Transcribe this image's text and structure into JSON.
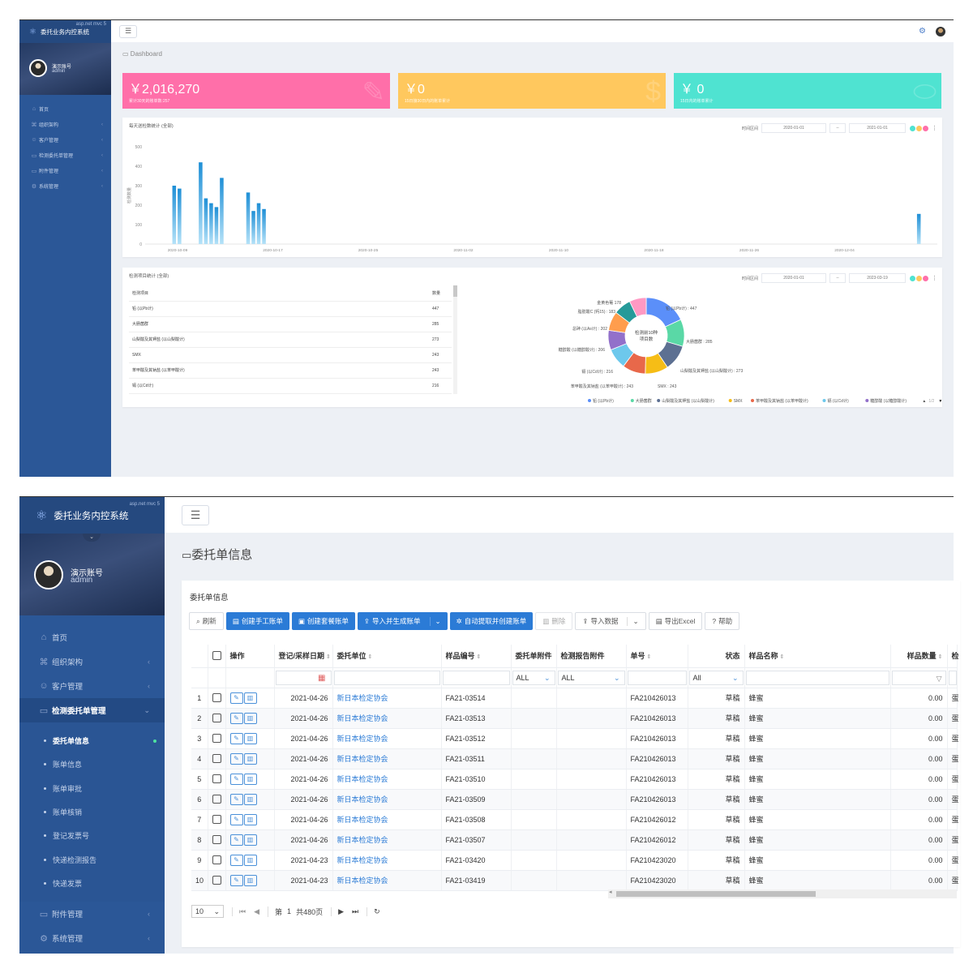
{
  "app": {
    "title": "委托业务内控系统",
    "badge": "asp.net mvc 5",
    "user_name": "演示账号",
    "user_role": "admin"
  },
  "nav1": [
    {
      "label": "首页",
      "icon": "home-icon"
    },
    {
      "label": "组织架构",
      "icon": "org-icon"
    },
    {
      "label": "客户管理",
      "icon": "users-icon"
    },
    {
      "label": "检测委托单管理",
      "icon": "doc-icon"
    },
    {
      "label": "附件管理",
      "icon": "attach-icon"
    },
    {
      "label": "系统管理",
      "icon": "gear-icon"
    }
  ],
  "dashboard": {
    "breadcrumb": "Dashboard",
    "stats": [
      {
        "value": "￥2,016,270",
        "label": "累计30天的账单数:257",
        "color": "#ff6fa9"
      },
      {
        "value": "￥0",
        "label": "15日接30日内的账单累计",
        "color": "#ffc85e"
      },
      {
        "value": "￥ 0",
        "label": "15日内的账单累计",
        "color": "#4fe3d1"
      }
    ],
    "chart1": {
      "title": "每天送检数统计 (全部)",
      "date_label": "时间区间",
      "date_from": "2020-01-01",
      "date_sep": "--",
      "date_to": "2021-01-01",
      "chart_data": {
        "type": "bar",
        "ylabel": "检测数量",
        "yticks": [
          0,
          100,
          200,
          300,
          400,
          500
        ],
        "ylim": [
          0,
          500
        ],
        "xticks": [
          "2020-10-09",
          "2020-10-17",
          "2020-10-25",
          "2020-11-02",
          "2020-11-10",
          "2020-11-18",
          "2020-11-26",
          "2020-12-04"
        ],
        "values": [
          0,
          0,
          0,
          0,
          0,
          300,
          285,
          0,
          0,
          0,
          420,
          235,
          210,
          190,
          340,
          0,
          0,
          0,
          0,
          265,
          170,
          210,
          180,
          0,
          0,
          0,
          0,
          0,
          0,
          0,
          0,
          0,
          0,
          0,
          0,
          0,
          0,
          0,
          0,
          0,
          0,
          0,
          0,
          0,
          0,
          0,
          0,
          0,
          0,
          0,
          0,
          0,
          0,
          0,
          0,
          0,
          0,
          0,
          0,
          0,
          0,
          0,
          0,
          0,
          0,
          0,
          0,
          0,
          0,
          0,
          0,
          0,
          0,
          0,
          0,
          0,
          0,
          0,
          0,
          0,
          0,
          0,
          0,
          0,
          0,
          0,
          0,
          0,
          0,
          0,
          0,
          0,
          0,
          0,
          0,
          0,
          0,
          0,
          0,
          0,
          0,
          0,
          0,
          0,
          0,
          0,
          0,
          0,
          0,
          0,
          0,
          0,
          0,
          0,
          0,
          0,
          0,
          0,
          0,
          0,
          0,
          0,
          0,
          0,
          0,
          0,
          0,
          0,
          0,
          0,
          0,
          0,
          0,
          0,
          0,
          0,
          0,
          0,
          0,
          0,
          0,
          0,
          0,
          0,
          0,
          0,
          155,
          0,
          0,
          0
        ]
      }
    },
    "chart2": {
      "title": "检测项目统计 (全部)",
      "date_label": "时间区间",
      "date_from": "2020-01-01",
      "date_sep": "--",
      "date_to": "2023-03-19",
      "table": {
        "headers": [
          "检测项目",
          "数量"
        ],
        "rows": [
          [
            "铅 (以Pb计)",
            "447"
          ],
          [
            "大肠菌群",
            "285"
          ],
          [
            "山梨酸及其钾盐 (以山梨酸计)",
            "273"
          ],
          [
            "SMX",
            "243"
          ],
          [
            "苯甲酸及其钠盐 (以苯甲酸计)",
            "243"
          ],
          [
            "镉 (以Cd计)",
            "216"
          ]
        ]
      },
      "center": "检测前10种 项目数",
      "chart_data": {
        "type": "pie",
        "slices": [
          {
            "name": "铅 (以Pb计)",
            "value": 447,
            "color": "#5b8ff9"
          },
          {
            "name": "大肠菌群",
            "value": 285,
            "color": "#5ad8a6"
          },
          {
            "name": "山梨酸及其钾盐 (以山梨酸计)",
            "value": 273,
            "color": "#5d7092"
          },
          {
            "name": "SMX",
            "value": 243,
            "color": "#f6bd16"
          },
          {
            "name": "苯甲酸及其钠盐 (以苯甲酸计)",
            "value": 243,
            "color": "#e8684a"
          },
          {
            "name": "镉 (以Cd计)",
            "value": 216,
            "color": "#6dc8ec"
          },
          {
            "name": "糖醇酸 (以糖醇酸计)",
            "value": 206,
            "color": "#9270ca"
          },
          {
            "name": "总砷 (以As计)",
            "value": 202,
            "color": "#ff9d4d"
          },
          {
            "name": "脂肪酸C (钙15)",
            "value": 183,
            "color": "#269a99"
          },
          {
            "name": "金黄色葡萄",
            "value": 178,
            "color": "#ff99c3"
          }
        ]
      },
      "labels": [
        {
          "text": "金黄色葡 178"
        },
        {
          "text": "铅 (以Pb计) : 447"
        },
        {
          "text": "脂肪酸C (钙15) : 183"
        },
        {
          "text": "总砷 (以As计) : 202"
        },
        {
          "text": "大肠菌群 : 285"
        },
        {
          "text": "糖醇酸 (以糖醇酸计) : 206"
        },
        {
          "text": "山梨酸及其钾盐 (以山梨酸计) : 273"
        },
        {
          "text": "镉 (以Cd计) : 216"
        },
        {
          "text": "苯甲酸及其钠盐 (以苯甲酸计) : 243"
        },
        {
          "text": "SMX : 243"
        }
      ],
      "legend": [
        "铅 (以Pb计)",
        "大肠菌群",
        "山梨酸及其钾盐 (以山梨酸计)",
        "SMX",
        "苯甲酸及其钠盐 (以苯甲酸计)",
        "镉 (以Cd计)",
        "糖醇酸 (以糖醇酸计)"
      ],
      "legend_page": "1/2"
    }
  },
  "nav2": {
    "items": [
      {
        "label": "首页",
        "icon": "home-icon"
      },
      {
        "label": "组织架构",
        "icon": "org-icon"
      },
      {
        "label": "客户管理",
        "icon": "users-icon"
      },
      {
        "label": "检测委托单管理",
        "icon": "doc-icon"
      }
    ],
    "sub": [
      "委托单信息",
      "账单信息",
      "账单审批",
      "账单核销",
      "登记发票号",
      "快递检测报告",
      "快递发票"
    ],
    "bottom": [
      {
        "label": "附件管理",
        "icon": "attach-icon"
      },
      {
        "label": "系统管理",
        "icon": "gear-icon"
      }
    ]
  },
  "orders": {
    "page_title": "委托单信息",
    "panel_title": "委托单信息",
    "toolbar": [
      "刷新",
      "创建手工账单",
      "创建套餐账单",
      "导入并生成账单",
      "自动提取并创建账单",
      "删除",
      "导入数据",
      "导出Excel",
      "帮助"
    ],
    "columns": [
      "操作",
      "登记/采样日期",
      "委托单位",
      "样品编号",
      "委托单附件",
      "检测报告附件",
      "单号",
      "状态",
      "样品名称",
      "样品数量",
      "检"
    ],
    "filters": {
      "all": "ALL",
      "all2": "All"
    },
    "rows": [
      [
        "1",
        "2021-04-26",
        "新日本检定协会",
        "FA21-03514",
        "FA210426013",
        "草稿",
        "蜂蜜",
        "0.00",
        "蛋"
      ],
      [
        "2",
        "2021-04-26",
        "新日本检定协会",
        "FA21-03513",
        "FA210426013",
        "草稿",
        "蜂蜜",
        "0.00",
        "蛋"
      ],
      [
        "3",
        "2021-04-26",
        "新日本检定协会",
        "FA21-03512",
        "FA210426013",
        "草稿",
        "蜂蜜",
        "0.00",
        "蛋"
      ],
      [
        "4",
        "2021-04-26",
        "新日本检定协会",
        "FA21-03511",
        "FA210426013",
        "草稿",
        "蜂蜜",
        "0.00",
        "蛋"
      ],
      [
        "5",
        "2021-04-26",
        "新日本检定协会",
        "FA21-03510",
        "FA210426013",
        "草稿",
        "蜂蜜",
        "0.00",
        "蛋"
      ],
      [
        "6",
        "2021-04-26",
        "新日本检定协会",
        "FA21-03509",
        "FA210426013",
        "草稿",
        "蜂蜜",
        "0.00",
        "蛋"
      ],
      [
        "7",
        "2021-04-26",
        "新日本检定协会",
        "FA21-03508",
        "FA210426012",
        "草稿",
        "蜂蜜",
        "0.00",
        "蛋"
      ],
      [
        "8",
        "2021-04-26",
        "新日本检定协会",
        "FA21-03507",
        "FA210426012",
        "草稿",
        "蜂蜜",
        "0.00",
        "蛋"
      ],
      [
        "9",
        "2021-04-23",
        "新日本检定协会",
        "FA21-03420",
        "FA210423020",
        "草稿",
        "蜂蜜",
        "0.00",
        "蛋"
      ],
      [
        "10",
        "2021-04-23",
        "新日本检定协会",
        "FA21-03419",
        "FA210423020",
        "草稿",
        "蜂蜜",
        "0.00",
        "蛋"
      ]
    ],
    "pager": {
      "size": "10",
      "page_prefix": "第",
      "page": "1",
      "total": "共480页"
    }
  }
}
